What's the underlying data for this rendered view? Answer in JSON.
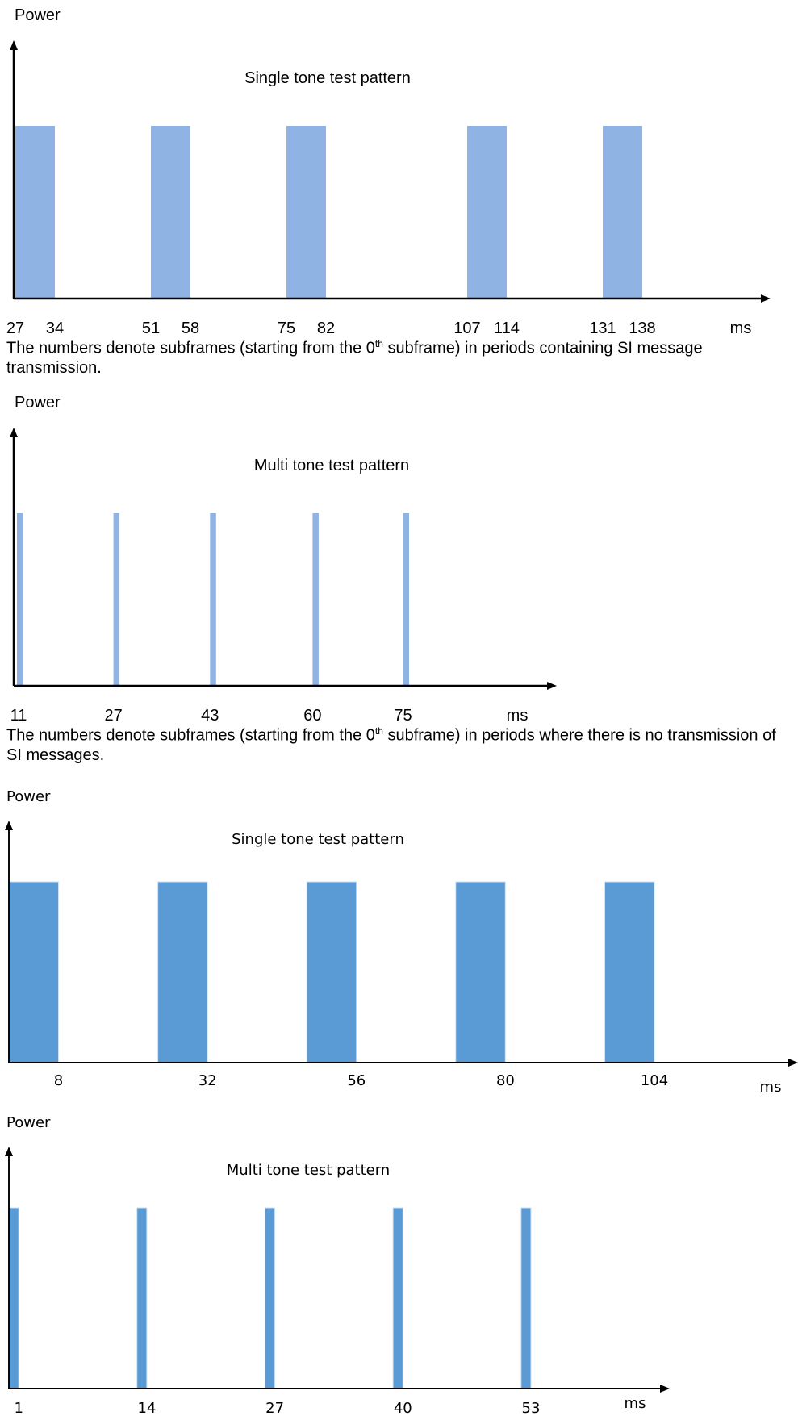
{
  "colors": {
    "bar_light": "#8fb3e3",
    "bar_dark": "#5b9bd5",
    "axis": "#000000"
  },
  "chart_data": [
    {
      "type": "bar",
      "title": "Single tone test pattern",
      "ylabel": "Power",
      "xunit": "ms",
      "xticks": [
        "27",
        "34",
        "51",
        "58",
        "75",
        "82",
        "107",
        "114",
        "131",
        "138"
      ],
      "intervals": [
        [
          27,
          34
        ],
        [
          51,
          58
        ],
        [
          75,
          82
        ],
        [
          107,
          114
        ],
        [
          131,
          138
        ]
      ],
      "values": [
        1,
        1,
        1,
        1,
        1
      ],
      "note": {
        "before": "The numbers denote subframes (starting from the 0",
        "sup": "th",
        "after": " subframe) in periods containing SI message transmission."
      }
    },
    {
      "type": "bar",
      "title": "Multi tone test pattern",
      "ylabel": "Power",
      "xunit": "ms",
      "xticks": [
        "11",
        "27",
        "43",
        "60",
        "75"
      ],
      "intervals": [
        [
          11,
          12
        ],
        [
          27,
          28
        ],
        [
          43,
          44
        ],
        [
          60,
          61
        ],
        [
          75,
          76
        ]
      ],
      "values": [
        1,
        1,
        1,
        1,
        1
      ],
      "note": {
        "before": "The numbers denote subframes (starting from the 0",
        "sup": "th",
        "after": " subframe) in periods where there is no transmission of SI messages."
      }
    },
    {
      "type": "bar",
      "title": "Single tone test pattern",
      "ylabel": "Power",
      "xunit": "ms",
      "xticks": [
        "8",
        "32",
        "56",
        "80",
        "104"
      ],
      "intervals": [
        [
          0,
          8
        ],
        [
          24,
          32
        ],
        [
          48,
          56
        ],
        [
          72,
          80
        ],
        [
          96,
          104
        ]
      ],
      "values": [
        1,
        1,
        1,
        1,
        1
      ]
    },
    {
      "type": "bar",
      "title": "Multi tone test pattern",
      "ylabel": "Power",
      "xunit": "ms",
      "xticks": [
        "1",
        "14",
        "27",
        "40",
        "53"
      ],
      "intervals": [
        [
          0,
          1
        ],
        [
          13,
          14
        ],
        [
          26,
          27
        ],
        [
          39,
          40
        ],
        [
          52,
          53
        ]
      ],
      "values": [
        1,
        1,
        1,
        1,
        1
      ]
    }
  ]
}
